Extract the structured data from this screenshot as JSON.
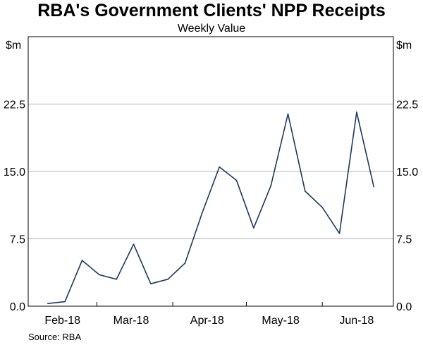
{
  "chart_data": {
    "type": "line",
    "title": "RBA's Government Clients' NPP Receipts",
    "subtitle": "Weekly Value",
    "ylabel_left": "$m",
    "ylabel_right": "$m",
    "ylim": [
      0,
      30
    ],
    "yticks": [
      0,
      7.5,
      15,
      22.5
    ],
    "ytick_labels": [
      "0.0",
      "7.5",
      "15.0",
      "22.5"
    ],
    "x_start": "2018-02-01",
    "x_end": "2018-06-30",
    "xtick_dates": [
      "2018-02-01",
      "2018-03-01",
      "2018-04-01",
      "2018-05-01",
      "2018-06-01",
      "2018-06-30"
    ],
    "xlabel_dates": [
      "2018-02-15",
      "2018-03-15",
      "2018-04-15",
      "2018-05-15",
      "2018-06-15"
    ],
    "xtick_labels": [
      "Feb-18",
      "Mar-18",
      "Apr-18",
      "May-18",
      "Jun-18"
    ],
    "grid": true,
    "series": [
      {
        "color": "#1c3a5e",
        "points": [
          {
            "x": "2018-02-09",
            "y": 0.3
          },
          {
            "x": "2018-02-16",
            "y": 0.5
          },
          {
            "x": "2018-02-23",
            "y": 5.1
          },
          {
            "x": "2018-03-02",
            "y": 3.5
          },
          {
            "x": "2018-03-09",
            "y": 3.0
          },
          {
            "x": "2018-03-16",
            "y": 6.9
          },
          {
            "x": "2018-03-23",
            "y": 2.5
          },
          {
            "x": "2018-03-30",
            "y": 3.0
          },
          {
            "x": "2018-04-06",
            "y": 4.8
          },
          {
            "x": "2018-04-13",
            "y": 10.4
          },
          {
            "x": "2018-04-20",
            "y": 15.5
          },
          {
            "x": "2018-04-27",
            "y": 14.0
          },
          {
            "x": "2018-05-04",
            "y": 8.7
          },
          {
            "x": "2018-05-11",
            "y": 13.4
          },
          {
            "x": "2018-05-18",
            "y": 21.4
          },
          {
            "x": "2018-05-25",
            "y": 12.8
          },
          {
            "x": "2018-06-01",
            "y": 11.0
          },
          {
            "x": "2018-06-08",
            "y": 8.1
          },
          {
            "x": "2018-06-15",
            "y": 21.6
          },
          {
            "x": "2018-06-22",
            "y": 13.3
          }
        ]
      }
    ],
    "source": "Source:   RBA"
  }
}
